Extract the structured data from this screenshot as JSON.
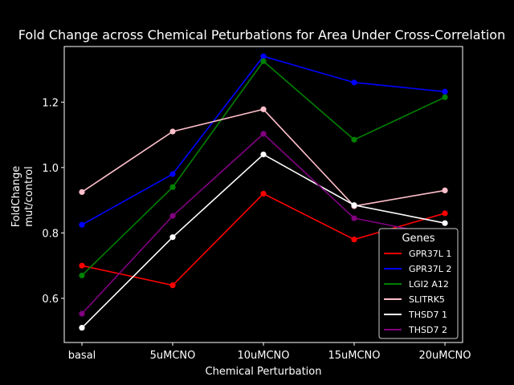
{
  "chart_data": {
    "type": "line",
    "title": "Fold Change across Chemical Peturbations for Area Under Cross-Correlation",
    "xlabel": "Chemical Perturbation",
    "ylabel_line1": "FoldChange",
    "ylabel_line2": "mut/control",
    "categories": [
      "basal",
      "5uMCNO",
      "10uMCNO",
      "15uMCNO",
      "20uMCNO"
    ],
    "ylim": [
      0.465,
      1.37
    ],
    "yticks": [
      0.6,
      0.8,
      1.0,
      1.2
    ],
    "ytick_labels": [
      "0.6",
      "0.8",
      "1.0",
      "1.2"
    ],
    "grid": false,
    "legend_title": "Genes",
    "legend_position": "lower-right",
    "series": [
      {
        "name": "GPR37L 1",
        "color": "#ff0000",
        "values": [
          0.7,
          0.64,
          0.92,
          0.78,
          0.86
        ]
      },
      {
        "name": "GPR37L 2",
        "color": "#0000ff",
        "values": [
          0.825,
          0.98,
          1.34,
          1.26,
          1.232
        ]
      },
      {
        "name": "LGI2 A12",
        "color": "#008000",
        "values": [
          0.67,
          0.94,
          1.325,
          1.085,
          1.215
        ]
      },
      {
        "name": "SLITRK5",
        "color": "#ffc0cb",
        "values": [
          0.925,
          1.11,
          1.178,
          0.882,
          0.93
        ]
      },
      {
        "name": "THSD7 1",
        "color": "#ffffff",
        "values": [
          0.51,
          0.787,
          1.04,
          0.885,
          0.83
        ]
      },
      {
        "name": "THSD7 2",
        "color": "#800080",
        "values": [
          0.553,
          0.852,
          1.103,
          0.845,
          0.79
        ]
      }
    ]
  }
}
